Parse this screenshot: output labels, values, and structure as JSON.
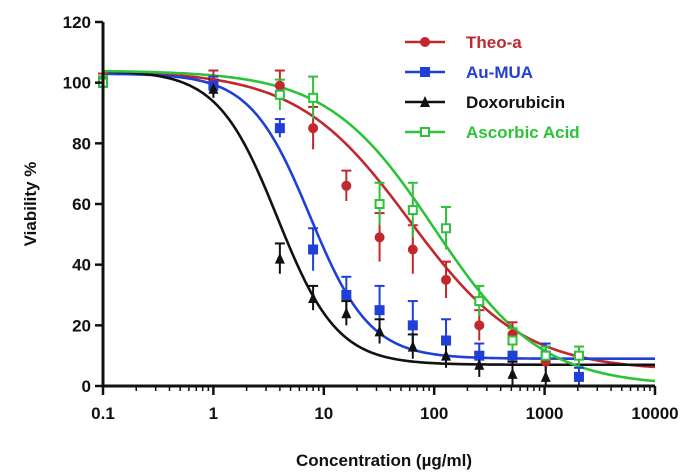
{
  "chart_data": {
    "type": "scatter",
    "title": "",
    "xlabel": "Concentration (µg/ml)",
    "ylabel": "Viability %",
    "xscale": "log",
    "xlim": [
      0.1,
      10000
    ],
    "ylim": [
      0,
      120
    ],
    "x_ticks": [
      "0.1",
      "1",
      "10",
      "100",
      "1000",
      "10000"
    ],
    "y_ticks": [
      "0",
      "20",
      "40",
      "60",
      "80",
      "100",
      "120"
    ],
    "grid": false,
    "legend_position": "top-right",
    "series": [
      {
        "name": "Theo-a",
        "color": "#c0282d",
        "marker": "circle",
        "x": [
          0.1,
          1,
          4,
          8,
          16,
          32,
          64,
          128,
          256,
          512,
          1024
        ],
        "y": [
          100,
          100,
          99,
          85,
          66,
          49,
          45,
          35,
          20,
          17,
          8
        ],
        "err": [
          3,
          4,
          5,
          7,
          5,
          8,
          8,
          6,
          5,
          4,
          3
        ],
        "fit": {
          "top": 104,
          "bottom": 5,
          "ec50": 60,
          "hill": 0.85
        }
      },
      {
        "name": "Au-MUA",
        "color": "#1f3fd6",
        "marker": "square",
        "x": [
          0.1,
          1,
          4,
          8,
          16,
          32,
          64,
          128,
          256,
          512,
          1024,
          2048
        ],
        "y": [
          100,
          99,
          85,
          45,
          30,
          25,
          20,
          15,
          10,
          10,
          10,
          3
        ],
        "err": [
          2,
          3,
          3,
          7,
          6,
          8,
          8,
          7,
          4,
          4,
          4,
          3
        ],
        "fit": {
          "top": 103,
          "bottom": 9,
          "ec50": 7.5,
          "hill": 1.6
        }
      },
      {
        "name": "Doxorubicin",
        "color": "#111111",
        "marker": "triangle",
        "x": [
          0.1,
          1,
          4,
          8,
          16,
          32,
          64,
          128,
          256,
          512,
          1024
        ],
        "y": [
          100,
          98,
          42,
          29,
          24,
          18,
          13,
          10,
          7,
          4,
          3
        ],
        "err": [
          2,
          3,
          5,
          4,
          4,
          4,
          4,
          4,
          4,
          4,
          4
        ],
        "fit": {
          "top": 104,
          "bottom": 7,
          "ec50": 3.8,
          "hill": 1.6
        }
      },
      {
        "name": "Ascorbic Acid",
        "color": "#2ec23a",
        "marker": "open-square",
        "x": [
          0.1,
          4,
          8,
          32,
          64,
          128,
          256,
          512,
          1024,
          2048
        ],
        "y": [
          100,
          96,
          95,
          60,
          58,
          52,
          28,
          15,
          10,
          10
        ],
        "err": [
          2,
          5,
          7,
          7,
          9,
          7,
          5,
          4,
          3,
          3
        ],
        "fit": {
          "top": 104,
          "bottom": 0,
          "ec50": 100,
          "hill": 0.9
        }
      }
    ]
  }
}
